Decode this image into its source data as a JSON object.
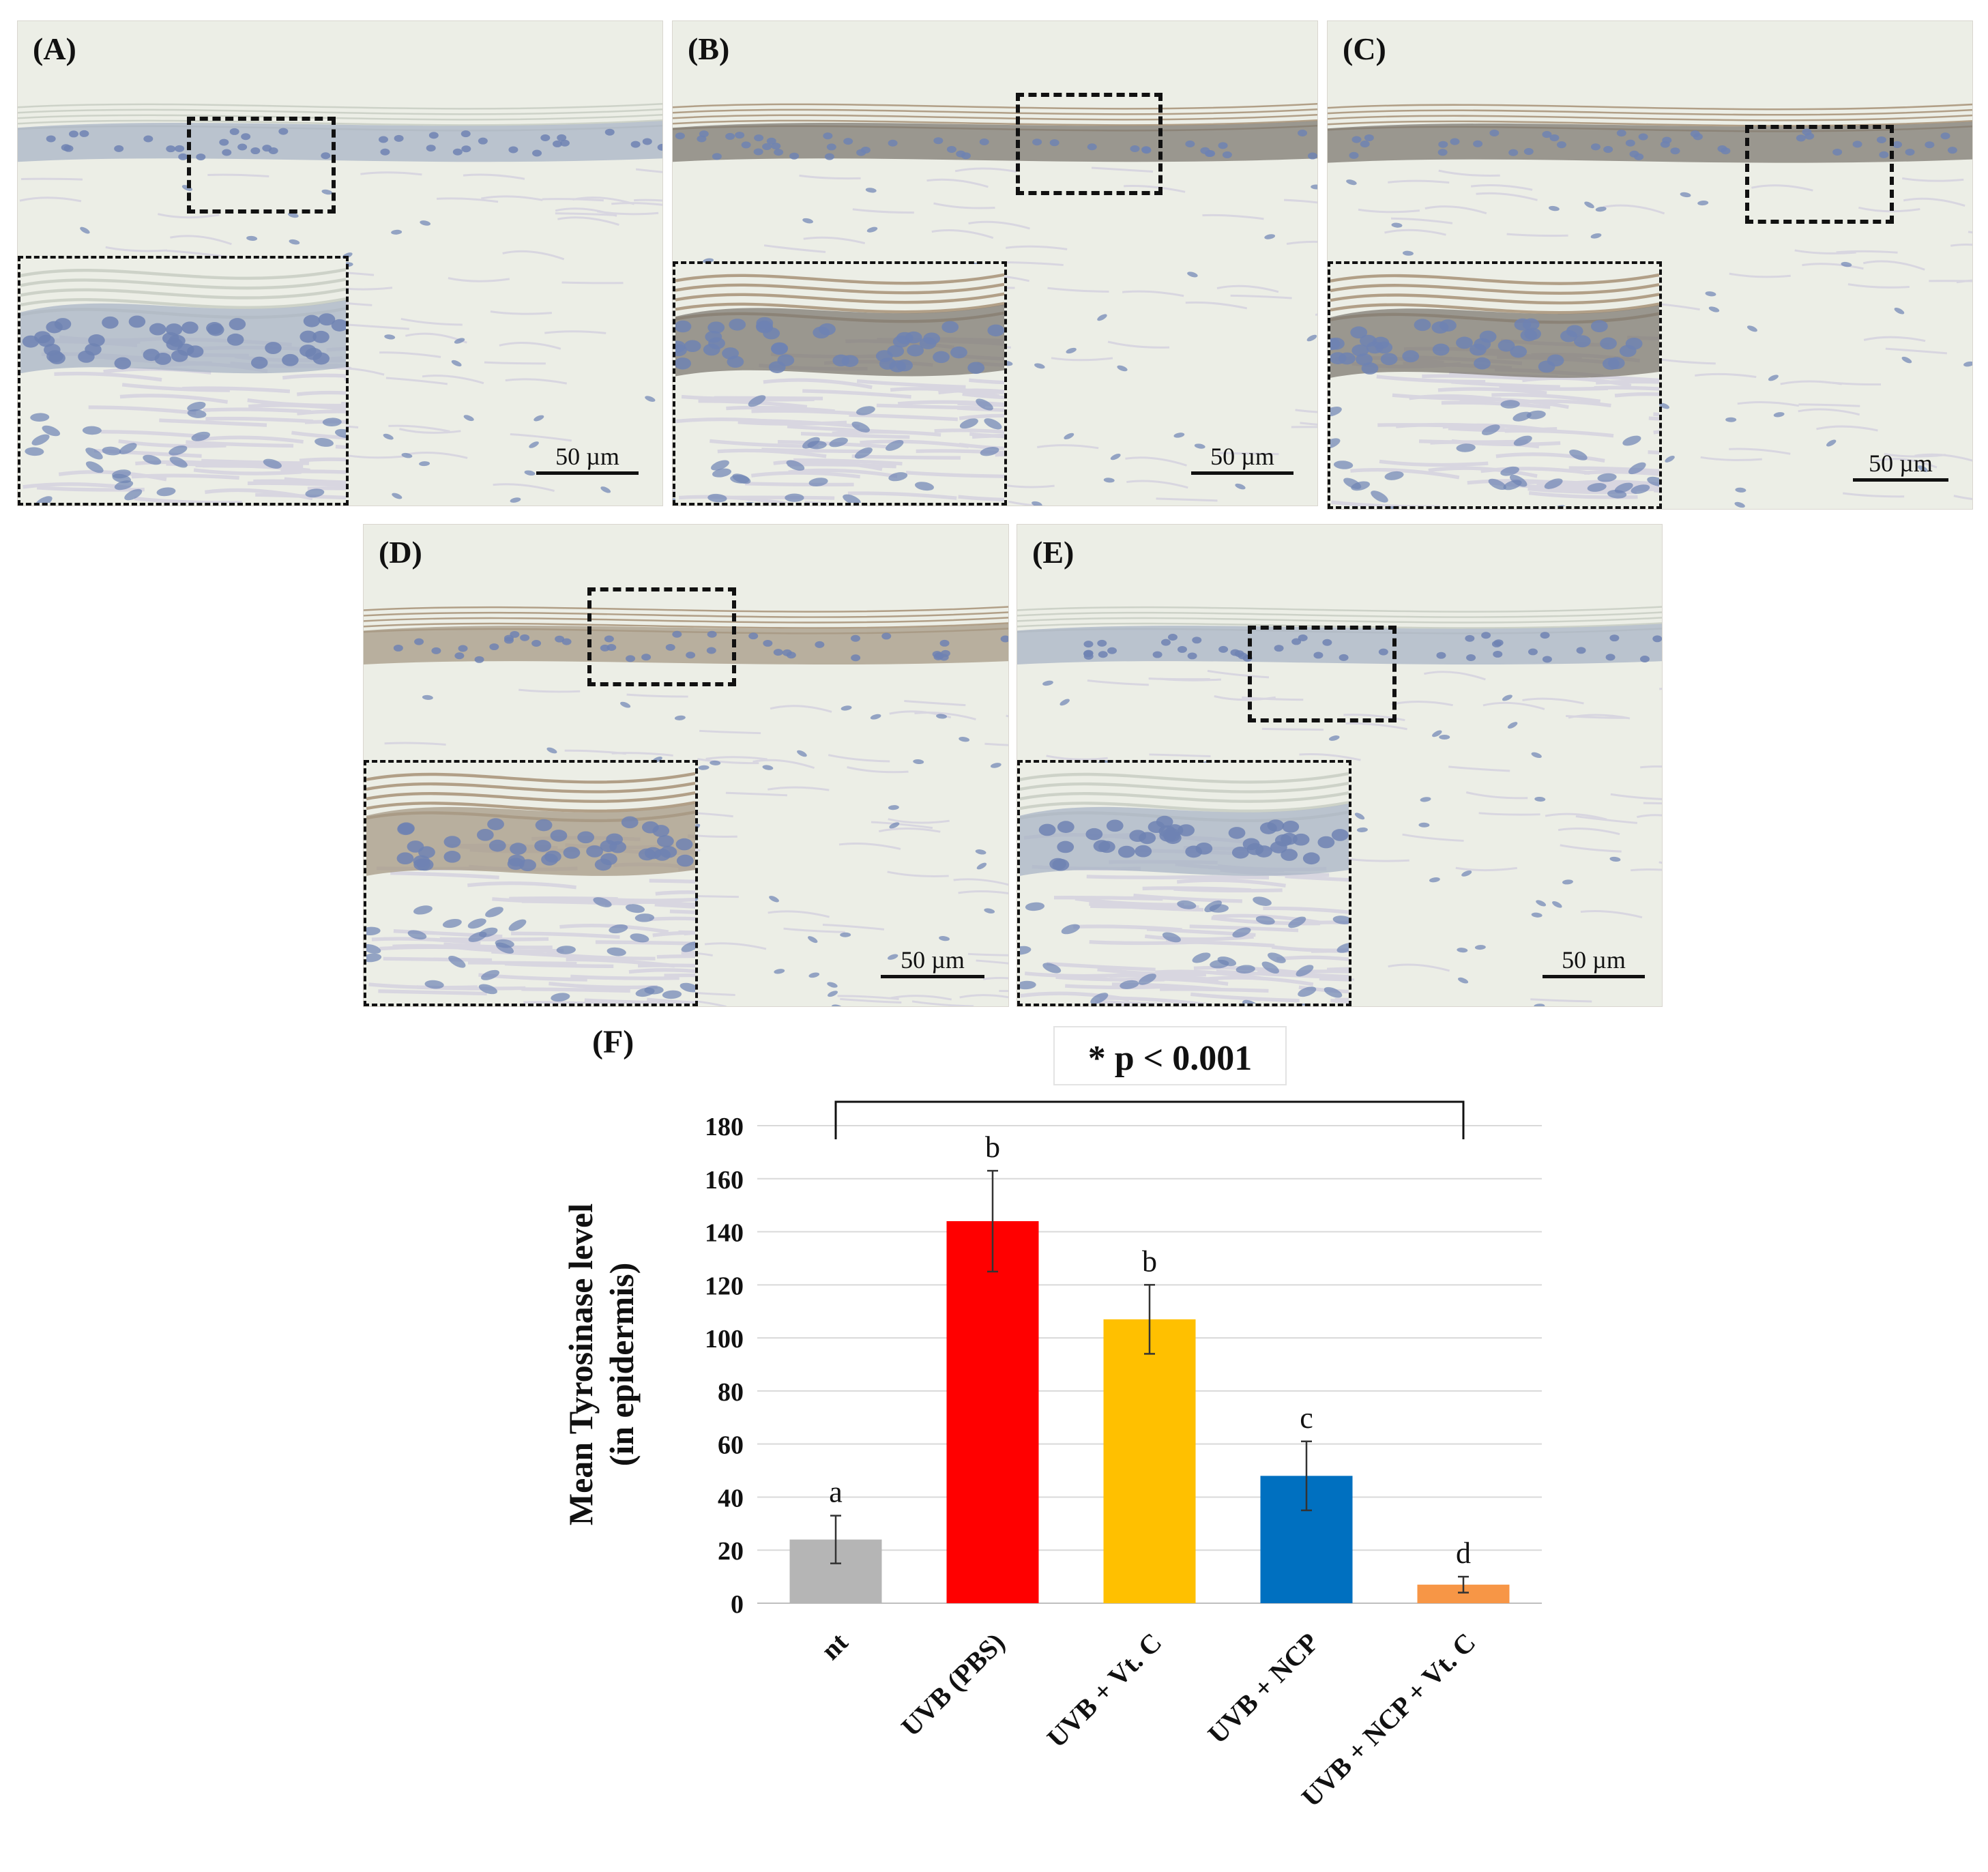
{
  "panels": [
    {
      "label": "(A)",
      "scale_text": "50 µm",
      "stain": "none"
    },
    {
      "label": "(B)",
      "scale_text": "50 µm",
      "stain": "heavy"
    },
    {
      "label": "(C)",
      "scale_text": "50 µm",
      "stain": "heavy"
    },
    {
      "label": "(D)",
      "scale_text": "50 µm",
      "stain": "moderate"
    },
    {
      "label": "(E)",
      "scale_text": "50 µm",
      "stain": "none"
    }
  ],
  "colors": {
    "tissue_background": "#eceee6",
    "nuclei": "#6e83b3",
    "tyrosinase_stain": "#8a6a48",
    "bar_nt": "#b5b5b5",
    "bar_uvb_pbs": "#ff0000",
    "bar_uvb_vtc": "#ffc000",
    "bar_uvb_ncp": "#0070c0",
    "bar_uvb_ncp_vtc": "#f79646"
  },
  "chart_data": {
    "type": "bar",
    "panel_label": "(F)",
    "significance_label": "* p < 0.001",
    "ylabel_line1": "Mean Tyrosinase level",
    "ylabel_line2": "(in epidermis)",
    "ylim": [
      0,
      180
    ],
    "yticks": [
      0,
      20,
      40,
      60,
      80,
      100,
      120,
      140,
      160,
      180
    ],
    "grid": true,
    "categories": [
      "nt",
      "UVB (PBS)",
      "UVB + Vt. C",
      "UVB + NCP",
      "UVB + NCP + Vt. C"
    ],
    "values": [
      24,
      144,
      107,
      48,
      7
    ],
    "errors": [
      9,
      19,
      13,
      13,
      3
    ],
    "letters": [
      "a",
      "b",
      "b",
      "c",
      "d"
    ]
  }
}
